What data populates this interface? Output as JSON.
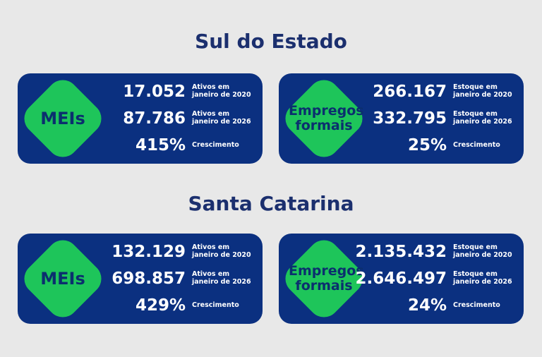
{
  "sections": [
    {
      "title": "Sul do Estado",
      "cards": [
        {
          "badge": "MEIs",
          "rows": [
            {
              "value": "17.052",
              "label": "Ativos em\njaneiro de 2020"
            },
            {
              "value": "87.786",
              "label": "Ativos em\njaneiro de 2026"
            },
            {
              "value": "415%",
              "label": "Crescimento"
            }
          ]
        },
        {
          "badge": "Empregos formais",
          "rows": [
            {
              "value": "266.167",
              "label": "Estoque em\njaneiro de 2020"
            },
            {
              "value": "332.795",
              "label": "Estoque em\njaneiro de 2026"
            },
            {
              "value": "25%",
              "label": "Crescimento"
            }
          ]
        }
      ]
    },
    {
      "title": "Santa Catarina",
      "cards": [
        {
          "badge": "MEIs",
          "rows": [
            {
              "value": "132.129",
              "label": "Ativos em\njaneiro de 2020"
            },
            {
              "value": "698.857",
              "label": "Ativos em\njaneiro de 2026"
            },
            {
              "value": "429%",
              "label": "Crescimento"
            }
          ]
        },
        {
          "badge": "Empregos formais",
          "rows": [
            {
              "value": "2.135.432",
              "label": "Estoque em\njaneiro de 2020"
            },
            {
              "value": "2.646.497",
              "label": "Estoque em\njaneiro de 2026"
            },
            {
              "value": "24%",
              "label": "Crescimento"
            }
          ]
        }
      ]
    }
  ]
}
